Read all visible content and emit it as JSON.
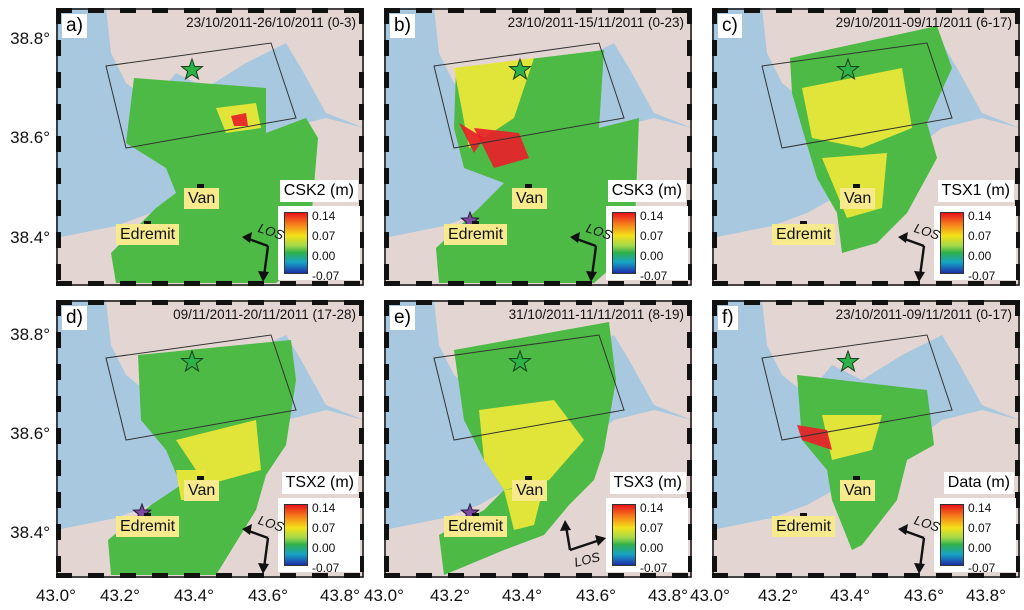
{
  "panels": [
    {
      "letter": "a)",
      "date": "23/10/2011-26/10/2011 (0-3)",
      "colorbar": "CSK2 (m)",
      "show_edremit_star": false,
      "los_style": "a"
    },
    {
      "letter": "b)",
      "date": "23/10/2011-15/11/2011 (0-23)",
      "colorbar": "CSK3 (m)",
      "show_edremit_star": true,
      "los_style": "a"
    },
    {
      "letter": "c)",
      "date": "29/10/2011-09/11/2011 (6-17)",
      "colorbar": "TSX1 (m)",
      "show_edremit_star": false,
      "los_style": "a"
    },
    {
      "letter": "d)",
      "date": "09/11/2011-20/11/2011 (17-28)",
      "colorbar": "TSX2 (m)",
      "show_edremit_star": true,
      "los_style": "a"
    },
    {
      "letter": "e)",
      "date": "31/10/2011-11/11/2011 (8-19)",
      "colorbar": "TSX3 (m)",
      "show_edremit_star": true,
      "los_style": "b"
    },
    {
      "letter": "f)",
      "date": "23/10/2011-09/11/2011 (0-17)",
      "colorbar": "Data (m)",
      "show_edremit_star": false,
      "los_style": "a"
    }
  ],
  "places": {
    "van": "Van",
    "edremit": "Edremit"
  },
  "colorbar_ticks": [
    "0.14",
    "0.07",
    "0.00",
    "-0.07"
  ],
  "los_label": "LOS",
  "lat_ticks_top": [
    "38.8°",
    "38.6°"
  ],
  "lat_ticks_bottom": [
    "38.4°",
    "38.8°",
    "38.6°",
    "38.4°"
  ],
  "lon_ticks": [
    [
      "43.0°",
      "43.2°",
      "43.4°",
      "43.6°",
      "43.8°"
    ],
    [
      "43.0°",
      "43.2°",
      "43.4°",
      "43.6°",
      "43.8°"
    ],
    [
      "43.0°",
      "43.2°",
      "43.4°",
      "43.6°",
      "43.8°"
    ]
  ],
  "colors": {
    "water": "#a8c8e0",
    "land": "#e3d5d2",
    "deformation_green": "#4cba44",
    "deformation_yellow": "#eee83a",
    "deformation_red": "#e8202a",
    "epicenter_star": "#2db24a",
    "aftershock_star": "#7a4aa0",
    "place_bg": "#f6ea8d"
  }
}
